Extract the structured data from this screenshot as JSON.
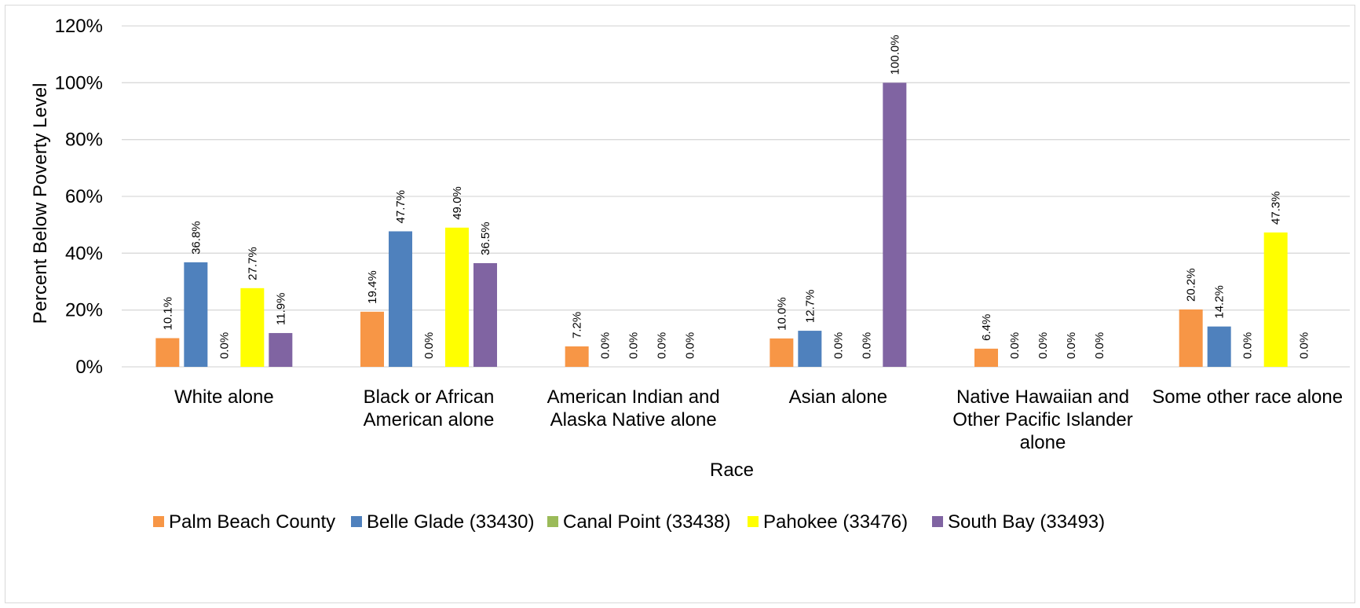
{
  "chart_data": {
    "type": "bar",
    "title": "",
    "xlabel": "Race",
    "ylabel": "Percent Below Poverty Level",
    "ylim": [
      0,
      120
    ],
    "y_ticks": [
      0,
      20,
      40,
      60,
      80,
      100,
      120
    ],
    "y_tick_labels": [
      "0%",
      "20%",
      "40%",
      "60%",
      "80%",
      "100%",
      "120%"
    ],
    "grid": true,
    "legend_position": "bottom",
    "categories": [
      [
        "White alone"
      ],
      [
        "Black or African",
        "American alone"
      ],
      [
        "American Indian and",
        "Alaska Native alone"
      ],
      [
        "Asian alone"
      ],
      [
        "Native Hawaiian and",
        "Other Pacific Islander",
        "alone"
      ],
      [
        "Some other race alone"
      ]
    ],
    "series": [
      {
        "name": "Palm Beach County",
        "color": "#F79646",
        "values": [
          10.1,
          19.4,
          7.2,
          10.0,
          6.4,
          20.2
        ],
        "labels": [
          "10.1%",
          "19.4%",
          "7.2%",
          "10.0%",
          "6.4%",
          "20.2%"
        ]
      },
      {
        "name": "Belle Glade (33430)",
        "color": "#4F81BD",
        "values": [
          36.8,
          47.7,
          0.0,
          12.7,
          0.0,
          14.2
        ],
        "labels": [
          "36.8%",
          "47.7%",
          "0.0%",
          "12.7%",
          "0.0%",
          "14.2%"
        ]
      },
      {
        "name": "Canal Point (33438)",
        "color": "#9BBB59",
        "values": [
          0.0,
          0.0,
          0.0,
          0.0,
          0.0,
          0.0
        ],
        "labels": [
          "0.0%",
          "0.0%",
          "0.0%",
          "0.0%",
          "0.0%",
          "0.0%"
        ]
      },
      {
        "name": "Pahokee (33476)",
        "color": "#FFFF00",
        "values": [
          27.7,
          49.0,
          0.0,
          0.0,
          0.0,
          47.3
        ],
        "labels": [
          "27.7%",
          "49.0%",
          "0.0%",
          "0.0%",
          "0.0%",
          "47.3%"
        ]
      },
      {
        "name": "South Bay (33493)",
        "color": "#8064A2",
        "values": [
          11.9,
          36.5,
          0.0,
          100.0,
          0.0,
          0.0
        ],
        "labels": [
          "11.9%",
          "36.5%",
          "0.0%",
          "100.0%",
          "0.0%",
          "0.0%"
        ]
      }
    ]
  }
}
